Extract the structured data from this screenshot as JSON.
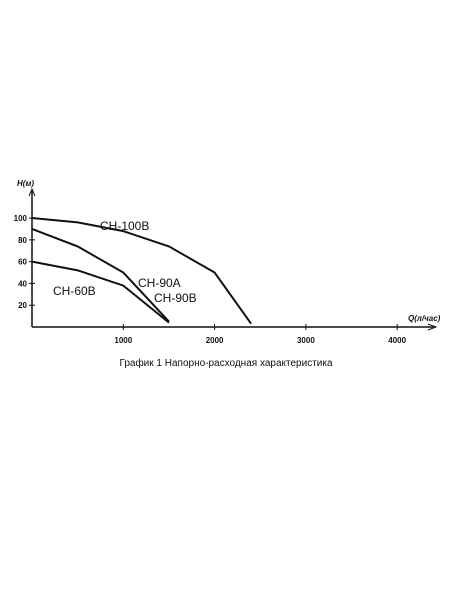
{
  "chart_data": {
    "type": "line",
    "x_label": "Q(л/час)",
    "y_label": "H(м)",
    "caption": "График 1 Напорно-расходная характеристика",
    "series": [
      {
        "name": "CH-100B",
        "color": "#111111",
        "x": [
          0,
          500,
          1000,
          1500,
          2000,
          2400
        ],
        "values": [
          100,
          96,
          88,
          74,
          50,
          3
        ]
      },
      {
        "name": "CH-90A",
        "color": "#111111",
        "x": [
          0,
          500,
          1000,
          1500
        ],
        "values": [
          90,
          74,
          50,
          5
        ]
      },
      {
        "name": "CH-60B",
        "color": "#111111",
        "x": [
          0,
          500,
          1000,
          1500
        ],
        "values": [
          60,
          52,
          38,
          4
        ]
      }
    ],
    "annotations": [
      "CH-90B"
    ],
    "xlim": [
      0,
      4400
    ],
    "ylim": [
      0,
      123
    ],
    "xticks": [
      1000,
      2000,
      3000,
      4000
    ],
    "yticks": [
      20,
      40,
      60,
      80,
      100
    ]
  }
}
